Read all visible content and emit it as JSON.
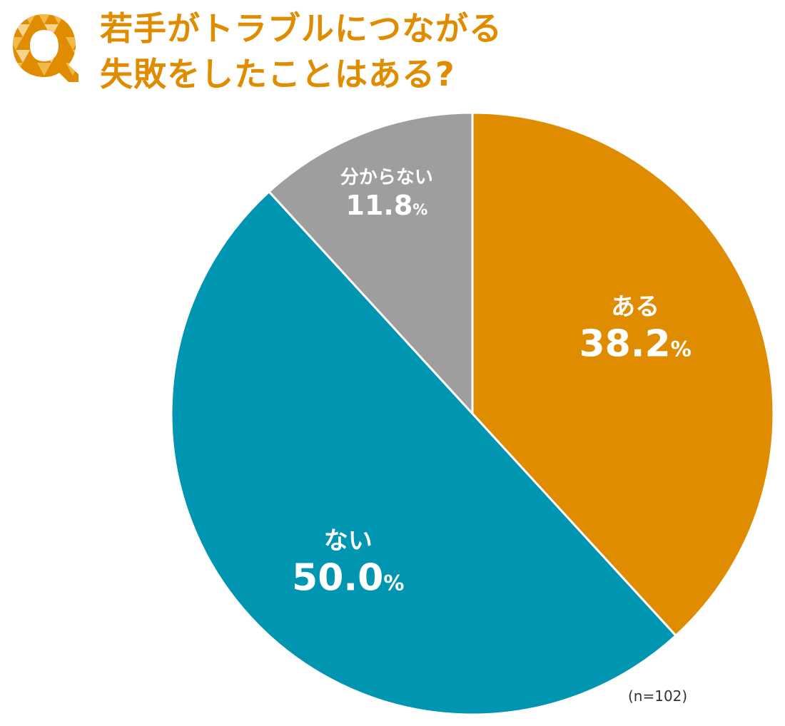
{
  "title": {
    "line1": "若手がトラブルにつながる",
    "line2": "失敗をしたことはある?"
  },
  "badge": {
    "letter": "Q",
    "icon": "question-q-icon"
  },
  "chart_data": {
    "type": "pie",
    "start_angle_deg": 0,
    "direction": "clockwise",
    "slices": [
      {
        "label": "ある",
        "value": 38.2,
        "display": "38.2",
        "unit": "%",
        "color": "#e08c00"
      },
      {
        "label": "ない",
        "value": 50.0,
        "display": "50.0",
        "unit": "%",
        "color": "#0095b0"
      },
      {
        "label": "分からない",
        "value": 11.8,
        "display": "11.8",
        "unit": "%",
        "color": "#9e9e9e"
      }
    ]
  },
  "note": "(n=102)",
  "colors": {
    "accent": "#e08c00",
    "text": "#ffffff"
  }
}
